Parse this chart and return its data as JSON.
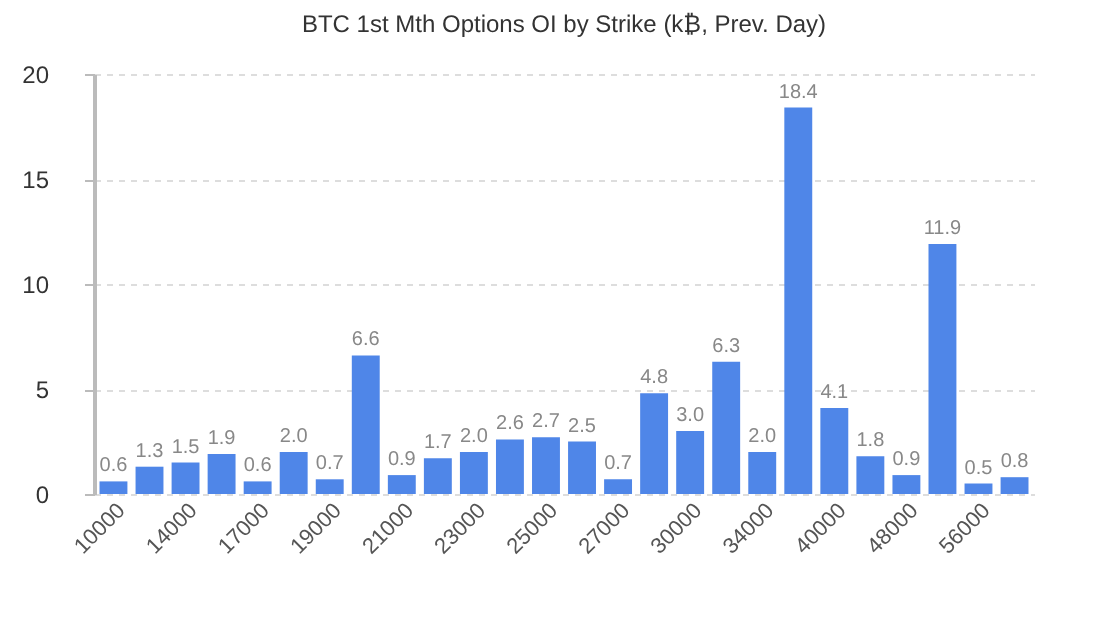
{
  "chart_data": {
    "type": "bar",
    "title": "BTC 1st Mth Options OI by Strike (k₿, Prev. Day)",
    "categories": [
      "10000",
      null,
      "14000",
      null,
      "17000",
      null,
      "19000",
      null,
      "21000",
      null,
      "23000",
      null,
      "25000",
      null,
      "27000",
      null,
      "30000",
      null,
      "34000",
      null,
      "40000",
      null,
      "48000",
      null,
      "56000",
      null
    ],
    "values": [
      0.6,
      1.3,
      1.5,
      1.9,
      0.6,
      2.0,
      0.7,
      6.6,
      0.9,
      1.7,
      2.0,
      2.6,
      2.7,
      2.5,
      0.7,
      4.8,
      3.0,
      6.3,
      2.0,
      18.4,
      4.1,
      1.8,
      0.9,
      11.9,
      0.5,
      0.8
    ],
    "value_labels": [
      "0.6",
      "1.3",
      "1.5",
      "1.9",
      "0.6",
      "2.0",
      "0.7",
      "6.6",
      "0.9",
      "1.7",
      "2.0",
      "2.6",
      "2.7",
      "2.5",
      "0.7",
      "4.8",
      "3.0",
      "6.3",
      "2.0",
      "18.4",
      "4.1",
      "1.8",
      "0.9",
      "11.9",
      "0.5",
      "0.8"
    ],
    "color": "#4f86e8",
    "ylim": [
      0,
      20
    ],
    "yticks": [
      0,
      5,
      10,
      15,
      20
    ],
    "grid": "y"
  }
}
